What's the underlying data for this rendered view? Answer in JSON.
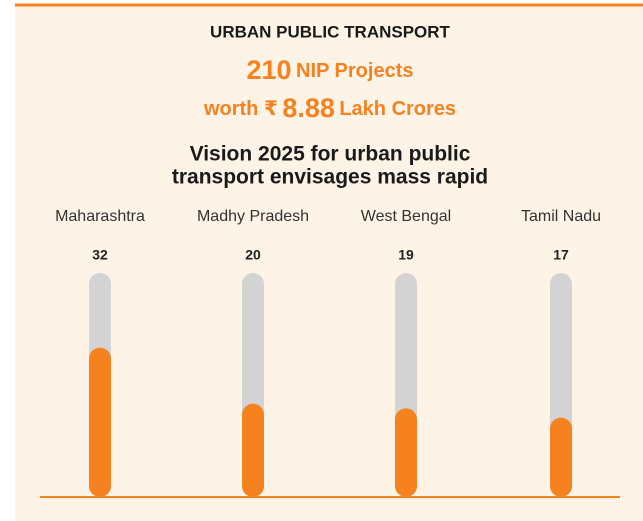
{
  "chart_data": {
    "type": "bar",
    "title": "URBAN PUBLIC TRANSPORT",
    "highlight": {
      "count": "210",
      "count_label": "NIP Projects",
      "worth_prefix": "worth ₹",
      "amount": "8.88",
      "amount_unit": "Lakh Crores"
    },
    "subtitle": [
      "Vision 2025 for urban public",
      "transport envisages mass rapid"
    ],
    "categories": [
      "Maharashtra",
      "Madhy Pradesh",
      "West Bengal",
      "Tamil Nadu"
    ],
    "values": [
      32,
      20,
      19,
      17
    ],
    "color": "#f5821f",
    "track_color": "#d3d3d3",
    "ylim": [
      0,
      48
    ]
  }
}
